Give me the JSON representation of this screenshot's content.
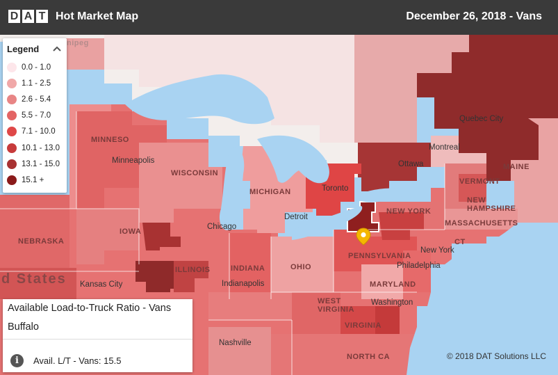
{
  "header": {
    "logo_letters": [
      "D",
      "A",
      "T"
    ],
    "app_title": "Hot Market Map",
    "date_title": "December 26, 2018 - Vans"
  },
  "legend": {
    "title": "Legend",
    "ranges": [
      {
        "label": "0.0 - 1.0",
        "color": "#fde6ea"
      },
      {
        "label": "1.1 - 2.5",
        "color": "#f0a8a8"
      },
      {
        "label": "2.6 - 5.4",
        "color": "#e88585"
      },
      {
        "label": "5.5 - 7.0",
        "color": "#e36464"
      },
      {
        "label": "7.1 - 10.0",
        "color": "#df4848"
      },
      {
        "label": "10.1 - 13.0",
        "color": "#c73b3b"
      },
      {
        "label": "13.1 - 15.0",
        "color": "#a83232"
      },
      {
        "label": "15.1 +",
        "color": "#8a1a1a"
      }
    ]
  },
  "map": {
    "labels": {
      "winnipeg": "nipeg",
      "toronto": "Toronto",
      "ottawa": "Ottawa",
      "montreal": "Montreal",
      "quebec_city": "Quebec City",
      "maine": "MAINE",
      "vermont": "VERMONT",
      "new_hampshire": "NEW\nHAMPSHIRE",
      "massachusetts": "MASSACHUSETTS",
      "ct": "CT",
      "new_york_state": "NEW YORK",
      "new_york_city": "New York",
      "philadelphia": "Philadelphia",
      "pennsylvania": "PENNSYLVANIA",
      "maryland": "MARYLAND",
      "washington": "Washington",
      "west_virginia": "WEST\nVIRGINIA",
      "virginia": "VIRGINIA",
      "north_carolina": "NORTH CA",
      "ohio": "OHIO",
      "indiana": "INDIANA",
      "indianapolis": "Indianapolis",
      "illinois": "ILLINOIS",
      "chicago": "Chicago",
      "detroit": "Detroit",
      "michigan": "MICHIGAN",
      "wisconsin": "WISCONSIN",
      "minneapolis": "Minneapolis",
      "minnesota": "MINNESO",
      "iowa": "IOWA",
      "nebraska": "NEBRASKA",
      "kansas_city": "Kansas City",
      "nashville": "Nashville",
      "united_states": "d States"
    },
    "selected_market": "Buffalo",
    "colors": {
      "water": "#a9d3f2",
      "land_canada": "#f3eeec"
    }
  },
  "info_panel": {
    "title": "Available Load-to-Truck Ratio - Vans",
    "market": "Buffalo",
    "stat": "Avail. L/T - Vans: 15.5",
    "info_icon": "i"
  },
  "copyright": "© 2018 DAT Solutions LLC"
}
